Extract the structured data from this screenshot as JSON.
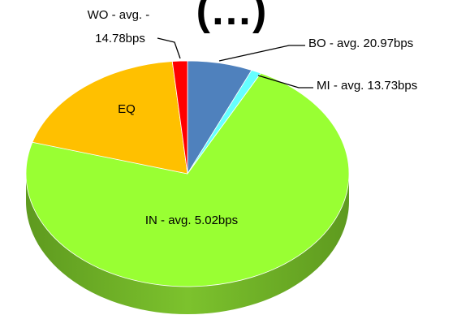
{
  "chart_data": {
    "type": "pie",
    "style": "3d-pie",
    "title": "(…)",
    "slices": [
      {
        "label": "BO - avg. 20.97bps",
        "value": 6.5,
        "color": "#4F81BD"
      },
      {
        "label": "MI - avg. 13.73bps",
        "value": 1.0,
        "color": "#66FFFF"
      },
      {
        "label": "IN - avg. 5.02bps",
        "value": 72.0,
        "color": "#99FF33"
      },
      {
        "label": "EQ",
        "value": 19.0,
        "color": "#FFC000"
      },
      {
        "label": "WO - avg. -14.78bps",
        "value": 1.5,
        "color": "#FF0000"
      }
    ]
  }
}
